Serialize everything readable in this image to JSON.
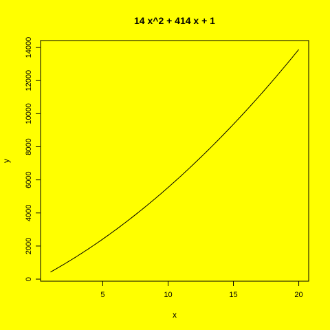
{
  "chart_data": {
    "type": "line",
    "title": "14 x^2 +  414 x +  1",
    "xlabel": "x",
    "ylabel": "y",
    "xlim": [
      1,
      20
    ],
    "ylim": [
      415,
      13881
    ],
    "x_ticks": [
      5,
      10,
      15,
      20
    ],
    "y_ticks": [
      0,
      2000,
      4000,
      6000,
      8000,
      10000,
      12000,
      14000
    ],
    "grid": false,
    "legend": "none",
    "function": {
      "a": 14,
      "b": 414,
      "c": 1
    },
    "series": [
      {
        "x": [
          1,
          2,
          3,
          4,
          5,
          6,
          7,
          8,
          9,
          10,
          11,
          12,
          13,
          14,
          15,
          16,
          17,
          18,
          19,
          20
        ],
        "y": [
          429,
          885,
          1369,
          1881,
          2421,
          2989,
          3585,
          4209,
          4861,
          5541,
          6249,
          6985,
          7749,
          8541,
          9361,
          10209,
          11085,
          11989,
          12921,
          13881
        ]
      }
    ]
  },
  "colors": {
    "background": "#ffff00",
    "line": "#000000",
    "axis": "#000000"
  }
}
